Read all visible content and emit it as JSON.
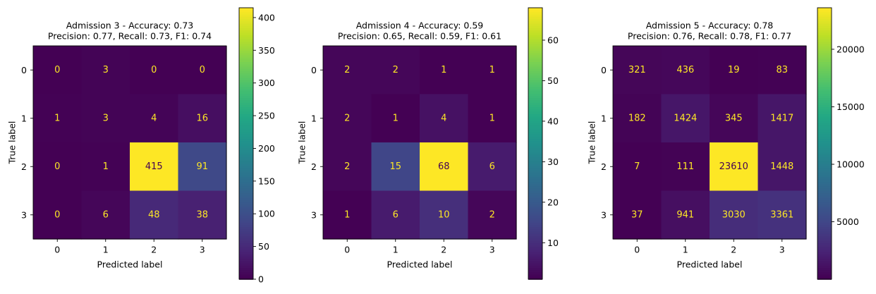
{
  "chart_data": [
    {
      "type": "heatmap",
      "title_line1": "Admission 3 - Accuracy: 0.73",
      "title_line2": "Precision: 0.77, Recall: 0.73, F1: 0.74",
      "xlabel": "Predicted label",
      "ylabel": "True label",
      "x_ticks": [
        "0",
        "1",
        "2",
        "3"
      ],
      "y_ticks": [
        "0",
        "1",
        "2",
        "3"
      ],
      "matrix": [
        [
          0,
          3,
          0,
          0
        ],
        [
          1,
          3,
          4,
          16
        ],
        [
          0,
          1,
          415,
          91
        ],
        [
          0,
          6,
          48,
          38
        ]
      ],
      "colormap": "viridis",
      "color_range": [
        0,
        415
      ],
      "colorbar_ticks": [
        0,
        50,
        100,
        150,
        200,
        250,
        300,
        350,
        400
      ]
    },
    {
      "type": "heatmap",
      "title_line1": "Admission 4 - Accuracy: 0.59",
      "title_line2": "Precision: 0.65, Recall: 0.59, F1: 0.61",
      "xlabel": "Predicted label",
      "ylabel": "True label",
      "x_ticks": [
        "0",
        "1",
        "2",
        "3"
      ],
      "y_ticks": [
        "0",
        "1",
        "2",
        "3"
      ],
      "matrix": [
        [
          2,
          2,
          1,
          1
        ],
        [
          2,
          1,
          4,
          1
        ],
        [
          2,
          15,
          68,
          6
        ],
        [
          1,
          6,
          10,
          2
        ]
      ],
      "colormap": "viridis",
      "color_range": [
        1,
        68
      ],
      "colorbar_ticks": [
        10,
        20,
        30,
        40,
        50,
        60
      ]
    },
    {
      "type": "heatmap",
      "title_line1": "Admission 5 - Accuracy: 0.78",
      "title_line2": "Precision: 0.76, Recall: 0.78, F1: 0.77",
      "xlabel": "Predicted label",
      "ylabel": "True label",
      "x_ticks": [
        "0",
        "1",
        "2",
        "3"
      ],
      "y_ticks": [
        "0",
        "1",
        "2",
        "3"
      ],
      "matrix": [
        [
          321,
          436,
          19,
          83
        ],
        [
          182,
          1424,
          345,
          1417
        ],
        [
          7,
          111,
          23610,
          1448
        ],
        [
          37,
          941,
          3030,
          3361
        ]
      ],
      "colormap": "viridis",
      "color_range": [
        7,
        23610
      ],
      "colorbar_ticks": [
        5000,
        10000,
        15000,
        20000
      ]
    }
  ]
}
